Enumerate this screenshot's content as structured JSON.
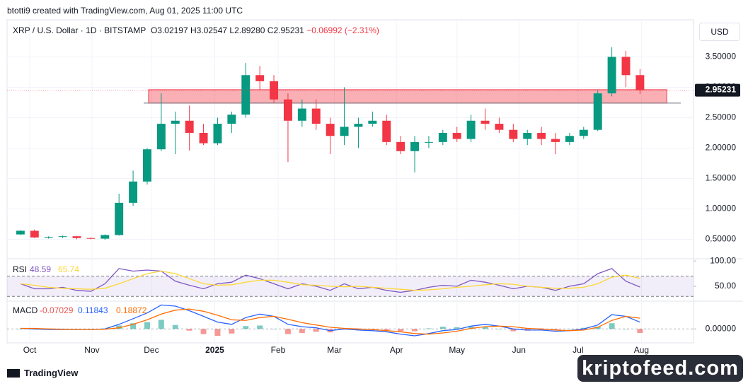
{
  "header": "btotti9 created with TradingView.com, Aug 01, 2025 11:00 UTC",
  "symbol": "XRP / U.S. Dollar · 1D · BITSTAMP",
  "ohlc": {
    "open": "O3.02197",
    "high": "H3.02547",
    "low": "L2.89280",
    "close": "C2.95231",
    "change": "−0.06992 (−2.31%)"
  },
  "currency": "USD",
  "footer": "TradingView",
  "watermark": "kriptofeed.com",
  "chart_data": [
    {
      "type": "candlestick",
      "up_color": "#089981",
      "down_color": "#f23645",
      "xlim": [
        -0.45,
        48.3
      ],
      "ylim": [
        0.18,
        4.11
      ],
      "xticks": [
        {
          "value": 1.16,
          "label": "Oct"
        },
        {
          "value": 5.58,
          "label": "Nov"
        },
        {
          "value": 9.8,
          "label": "Dec"
        },
        {
          "value": 14.3,
          "label": "2025"
        },
        {
          "value": 18.8,
          "label": "Feb"
        },
        {
          "value": 22.8,
          "label": "Mar"
        },
        {
          "value": 27.2,
          "label": "Apr"
        },
        {
          "value": 31.5,
          "label": "May"
        },
        {
          "value": 35.9,
          "label": "Jun"
        },
        {
          "value": 40.1,
          "label": "Jul"
        },
        {
          "value": 44.6,
          "label": "Aug"
        }
      ],
      "yticks": [
        {
          "value": 0.5,
          "label": "0.50000"
        },
        {
          "value": 1,
          "label": "1.00000"
        },
        {
          "value": 1.5,
          "label": "1.50000"
        },
        {
          "value": 2,
          "label": "2.00000"
        },
        {
          "value": 2.5,
          "label": "2.50000"
        },
        {
          "value": 3,
          "label": "3.00000"
        },
        {
          "value": 3.5,
          "label": "3.50000"
        }
      ],
      "last_price": 2.95231,
      "zone": {
        "low": 2.74,
        "high": 2.96,
        "start": 9.6,
        "end": 46.4,
        "line_start": 9.25,
        "line_end": 47.4,
        "color": "#f23645"
      },
      "candles": [
        [
          0.58,
          0.65,
          0.57,
          0.64
        ],
        [
          0.64,
          0.66,
          0.52,
          0.53
        ],
        [
          0.53,
          0.55,
          0.51,
          0.54
        ],
        [
          0.54,
          0.56,
          0.52,
          0.55
        ],
        [
          0.55,
          0.55,
          0.5,
          0.52
        ],
        [
          0.52,
          0.53,
          0.5,
          0.51
        ],
        [
          0.51,
          0.58,
          0.49,
          0.57
        ],
        [
          0.57,
          1.25,
          0.56,
          1.1
        ],
        [
          1.1,
          1.63,
          1.05,
          1.45
        ],
        [
          1.45,
          2.0,
          1.4,
          1.98
        ],
        [
          1.98,
          2.9,
          1.95,
          2.4
        ],
        [
          2.4,
          2.6,
          1.9,
          2.45
        ],
        [
          2.45,
          2.7,
          1.96,
          2.25
        ],
        [
          2.25,
          2.4,
          2.05,
          2.08
        ],
        [
          2.08,
          2.5,
          2.05,
          2.4
        ],
        [
          2.4,
          2.6,
          2.25,
          2.55
        ],
        [
          2.55,
          3.4,
          2.5,
          3.2
        ],
        [
          3.2,
          3.35,
          2.95,
          3.1
        ],
        [
          3.1,
          3.2,
          2.75,
          2.8
        ],
        [
          2.8,
          2.9,
          1.77,
          2.45
        ],
        [
          2.45,
          2.8,
          2.35,
          2.65
        ],
        [
          2.65,
          2.8,
          2.3,
          2.4
        ],
        [
          2.4,
          2.5,
          1.9,
          2.2
        ],
        [
          2.2,
          3.0,
          2.05,
          2.35
        ],
        [
          2.35,
          2.5,
          2.0,
          2.4
        ],
        [
          2.4,
          2.6,
          2.35,
          2.45
        ],
        [
          2.45,
          2.55,
          2.05,
          2.1
        ],
        [
          2.1,
          2.2,
          1.9,
          1.95
        ],
        [
          1.95,
          2.2,
          1.6,
          2.1
        ],
        [
          2.1,
          2.2,
          2.0,
          2.1
        ],
        [
          2.1,
          2.3,
          2.05,
          2.25
        ],
        [
          2.25,
          2.35,
          2.1,
          2.15
        ],
        [
          2.15,
          2.55,
          2.1,
          2.45
        ],
        [
          2.45,
          2.65,
          2.3,
          2.4
        ],
        [
          2.4,
          2.5,
          2.25,
          2.3
        ],
        [
          2.3,
          2.4,
          2.1,
          2.15
        ],
        [
          2.15,
          2.3,
          2.05,
          2.25
        ],
        [
          2.25,
          2.35,
          2.05,
          2.15
        ],
        [
          2.15,
          2.25,
          1.9,
          2.1
        ],
        [
          2.1,
          2.25,
          2.05,
          2.2
        ],
        [
          2.2,
          2.35,
          2.15,
          2.3
        ],
        [
          2.3,
          2.95,
          2.28,
          2.9
        ],
        [
          2.9,
          3.66,
          2.85,
          3.5
        ],
        [
          3.5,
          3.6,
          3.0,
          3.2
        ],
        [
          3.2,
          3.3,
          2.89,
          2.95
        ]
      ]
    },
    {
      "type": "rsi",
      "title": "RSI",
      "ylim": [
        20.6,
        104.4
      ],
      "yticks": [
        {
          "value": 100,
          "label": "100.00"
        },
        {
          "value": 50,
          "label": "50.00"
        }
      ],
      "band": [
        30,
        70
      ],
      "series": [
        {
          "color": "#7e57c2",
          "values": [
            55,
            45,
            45,
            48,
            42,
            40,
            55,
            85,
            80,
            82,
            80,
            60,
            52,
            45,
            55,
            58,
            72,
            65,
            55,
            45,
            55,
            50,
            42,
            55,
            45,
            48,
            42,
            38,
            42,
            48,
            52,
            50,
            62,
            58,
            52,
            45,
            50,
            48,
            42,
            50,
            55,
            75,
            85,
            60,
            48.59
          ]
        },
        {
          "color": "#fdd835",
          "values": [
            55,
            52,
            48,
            46,
            45,
            44,
            46,
            55,
            65,
            75,
            80,
            75,
            65,
            55,
            52,
            53,
            58,
            62,
            62,
            58,
            53,
            52,
            50,
            49,
            50,
            48,
            46,
            44,
            42,
            43,
            45,
            48,
            50,
            53,
            55,
            54,
            50,
            48,
            46,
            46,
            48,
            55,
            68,
            72,
            65.74
          ]
        }
      ]
    },
    {
      "type": "macd",
      "title": "MACD",
      "ylim": [
        -0.244,
        0.487
      ],
      "yticks": [
        {
          "value": 0,
          "label": "0.00000"
        }
      ],
      "histogram": {
        "up_color": "#26a69a",
        "down_color": "#ef5350",
        "values": [
          0,
          -0.01,
          -0.01,
          -0.005,
          0,
          0,
          0.005,
          0.06,
          0.1,
          0.12,
          0.16,
          0.07,
          -0.03,
          -0.09,
          -0.12,
          -0.08,
          0.05,
          0.06,
          0,
          -0.09,
          -0.07,
          -0.05,
          -0.06,
          -0.01,
          -0.02,
          -0.02,
          -0.02,
          -0.04,
          -0.04,
          0.01,
          0.04,
          0.03,
          0.04,
          0.04,
          0,
          -0.04,
          -0.03,
          -0.02,
          -0.02,
          0,
          0.02,
          0.04,
          0.1,
          0,
          -0.07029
        ]
      },
      "series": [
        {
          "color": "#2962ff",
          "values": [
            0.01,
            0,
            -0.01,
            -0.01,
            -0.01,
            -0.01,
            0,
            0.08,
            0.18,
            0.28,
            0.42,
            0.4,
            0.32,
            0.22,
            0.12,
            0.08,
            0.2,
            0.26,
            0.22,
            0.08,
            0.04,
            0.02,
            -0.03,
            0,
            -0.02,
            -0.03,
            -0.05,
            -0.09,
            -0.12,
            -0.08,
            -0.03,
            -0.01,
            0.05,
            0.08,
            0.05,
            0,
            -0.02,
            -0.02,
            -0.04,
            -0.03,
            0,
            0.07,
            0.25,
            0.22,
            0.11843
          ]
        },
        {
          "color": "#ff6d00",
          "values": [
            0.01,
            0.01,
            0,
            -0.005,
            -0.01,
            -0.01,
            -0.005,
            0.02,
            0.08,
            0.16,
            0.26,
            0.33,
            0.35,
            0.31,
            0.24,
            0.16,
            0.15,
            0.2,
            0.22,
            0.17,
            0.11,
            0.07,
            0.03,
            0.01,
            0,
            -0.01,
            -0.03,
            -0.05,
            -0.08,
            -0.09,
            -0.07,
            -0.04,
            0.01,
            0.04,
            0.05,
            0.04,
            0.01,
            0,
            -0.02,
            -0.03,
            -0.02,
            0.03,
            0.15,
            0.22,
            0.18872
          ]
        }
      ]
    }
  ]
}
